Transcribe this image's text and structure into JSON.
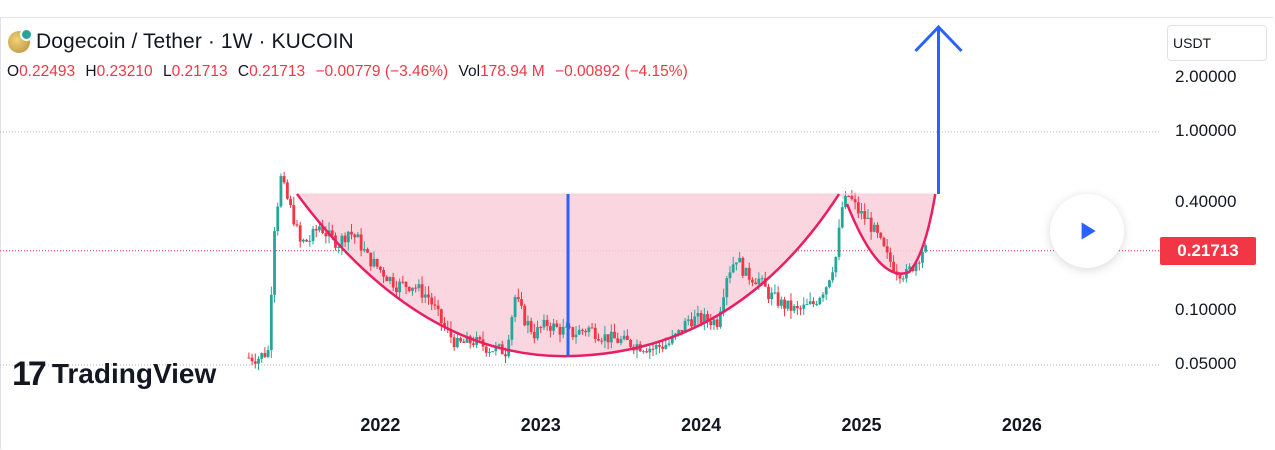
{
  "header": {
    "title": "Dogecoin / Tether · 1W · KUCOIN",
    "ohlc": {
      "o_label": "O",
      "o": "0.22493",
      "h_label": "H",
      "h": "0.23210",
      "l_label": "L",
      "l": "0.21713",
      "c_label": "C",
      "c": "0.21713",
      "change": "−0.00779 (−3.46%)",
      "vol_label": "Vol",
      "vol": "178.94 M",
      "vol_change": "−0.00892 (−4.15%)"
    }
  },
  "currency": "USDT",
  "current_price": "0.21713",
  "watermark": "TradingView",
  "colors": {
    "up": "#26a69a",
    "down": "#f23645",
    "cup_fill": "#f8cfdb",
    "cup_line": "#e91e63",
    "arrow": "#2962ff"
  },
  "icons": {
    "play": "play-icon",
    "logo": "tradingview-logo-icon",
    "symbol": "dogecoin-icon"
  },
  "chart_data": {
    "type": "candlestick",
    "title": "Dogecoin / Tether · 1W · KUCOIN",
    "y_scale": "log",
    "y_ticks": [
      "2.00000",
      "1.00000",
      "0.40000",
      "0.10000",
      "0.05000"
    ],
    "x_ticks": [
      "2022",
      "2023",
      "2024",
      "2025",
      "2026"
    ],
    "ylim": [
      0.038,
      2.8
    ],
    "xlim": [
      2021.0,
      2026.83
    ],
    "series_close": [
      [
        2021.18,
        0.055
      ],
      [
        2021.24,
        0.055
      ],
      [
        2021.3,
        0.06
      ],
      [
        2021.34,
        0.3
      ],
      [
        2021.38,
        0.55
      ],
      [
        2021.42,
        0.42
      ],
      [
        2021.46,
        0.33
      ],
      [
        2021.5,
        0.24
      ],
      [
        2021.56,
        0.25
      ],
      [
        2021.62,
        0.3
      ],
      [
        2021.68,
        0.26
      ],
      [
        2021.74,
        0.24
      ],
      [
        2021.8,
        0.28
      ],
      [
        2021.86,
        0.25
      ],
      [
        2021.92,
        0.2
      ],
      [
        2022.0,
        0.17
      ],
      [
        2022.1,
        0.14
      ],
      [
        2022.2,
        0.14
      ],
      [
        2022.3,
        0.12
      ],
      [
        2022.4,
        0.08
      ],
      [
        2022.48,
        0.065
      ],
      [
        2022.58,
        0.068
      ],
      [
        2022.68,
        0.062
      ],
      [
        2022.78,
        0.06
      ],
      [
        2022.84,
        0.12
      ],
      [
        2022.9,
        0.09
      ],
      [
        2022.96,
        0.075
      ],
      [
        2023.04,
        0.085
      ],
      [
        2023.1,
        0.08
      ],
      [
        2023.2,
        0.075
      ],
      [
        2023.3,
        0.08
      ],
      [
        2023.4,
        0.072
      ],
      [
        2023.5,
        0.068
      ],
      [
        2023.6,
        0.065
      ],
      [
        2023.7,
        0.062
      ],
      [
        2023.8,
        0.066
      ],
      [
        2023.86,
        0.075
      ],
      [
        2023.92,
        0.09
      ],
      [
        2024.0,
        0.09
      ],
      [
        2024.1,
        0.088
      ],
      [
        2024.16,
        0.16
      ],
      [
        2024.22,
        0.2
      ],
      [
        2024.28,
        0.16
      ],
      [
        2024.36,
        0.15
      ],
      [
        2024.42,
        0.125
      ],
      [
        2024.5,
        0.11
      ],
      [
        2024.6,
        0.1
      ],
      [
        2024.7,
        0.11
      ],
      [
        2024.78,
        0.14
      ],
      [
        2024.84,
        0.2
      ],
      [
        2024.88,
        0.38
      ],
      [
        2024.92,
        0.44
      ],
      [
        2024.98,
        0.36
      ],
      [
        2025.04,
        0.32
      ],
      [
        2025.1,
        0.26
      ],
      [
        2025.16,
        0.2
      ],
      [
        2025.22,
        0.17
      ],
      [
        2025.28,
        0.16
      ],
      [
        2025.34,
        0.19
      ],
      [
        2025.38,
        0.22
      ],
      [
        2025.42,
        0.21713
      ]
    ],
    "annotations": {
      "cup_rim_level": 0.45,
      "cup_bottom": 0.056,
      "cup_start_x": 2021.48,
      "cup_bottom_x": 2023.17,
      "cup_end_x": 2024.86,
      "handle_end_x": 2025.46,
      "handle_bottom": 0.165,
      "arrow_x": 2025.48,
      "arrow_top": 2.9,
      "depth_line_x": 2023.17
    },
    "reference_lines": [
      1.0,
      0.05
    ]
  }
}
